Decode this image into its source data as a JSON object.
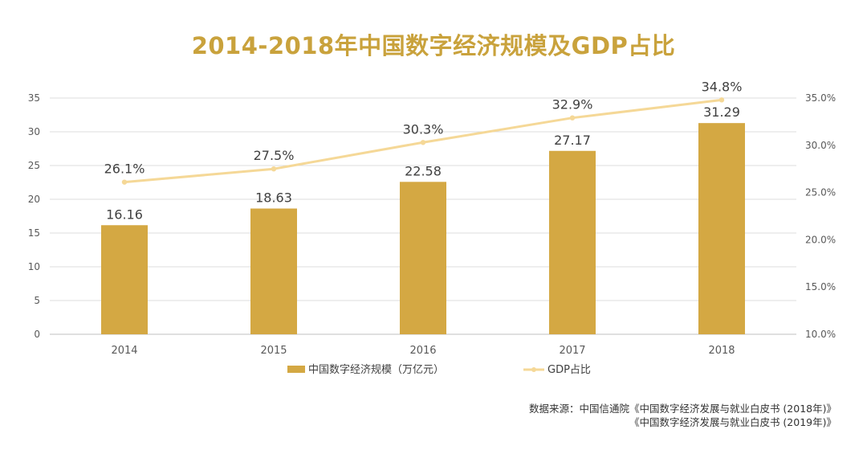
{
  "colors": {
    "bar": "#d4a843",
    "line": "#f5d897",
    "grid": "#dcdcdc",
    "axis_text": "#595959",
    "label_text": "#404040",
    "title": "#c9a23c"
  },
  "chart_data": {
    "type": "bar",
    "title": "2014-2018年中国数字经济规模及GDP占比",
    "categories": [
      "2014",
      "2015",
      "2016",
      "2017",
      "2018"
    ],
    "series": [
      {
        "name": "中国数字经济规模（万亿元）",
        "type": "bar",
        "axis": "left",
        "values": [
          16.16,
          18.63,
          22.58,
          27.17,
          31.29
        ],
        "labels": [
          "16.16",
          "18.63",
          "22.58",
          "27.17",
          "31.29"
        ]
      },
      {
        "name": "GDP占比",
        "type": "line",
        "axis": "right",
        "values": [
          26.1,
          27.5,
          30.3,
          32.9,
          34.8
        ],
        "labels": [
          "26.1%",
          "27.5%",
          "30.3%",
          "32.9%",
          "34.8%"
        ]
      }
    ],
    "y_left": {
      "min": 0,
      "max": 35,
      "ticks": [
        0,
        5,
        10,
        15,
        20,
        25,
        30,
        35
      ],
      "tick_labels": [
        "0",
        "5",
        "10",
        "15",
        "20",
        "25",
        "30",
        "35"
      ]
    },
    "y_right": {
      "min": 10,
      "max": 35,
      "ticks": [
        10,
        15,
        20,
        25,
        30,
        35
      ],
      "tick_labels": [
        "10.0%",
        "15.0%",
        "20.0%",
        "25.0%",
        "30.0%",
        "35.0%"
      ]
    },
    "grid": true,
    "legend_position": "bottom"
  },
  "source": {
    "line1": "数据来源：中国信通院《中国数字经济发展与就业白皮书 (2018年)》",
    "line2": "《中国数字经济发展与就业白皮书 (2019年)》"
  }
}
